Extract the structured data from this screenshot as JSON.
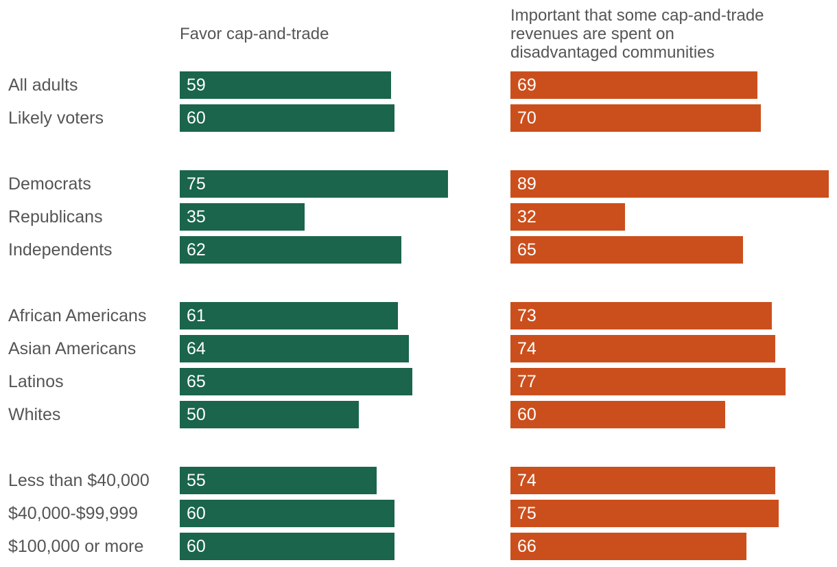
{
  "chart_data": {
    "type": "bar",
    "orientation": "horizontal",
    "categories": [
      "All adults",
      "Likely voters",
      "Democrats",
      "Republicans",
      "Independents",
      "African Americans",
      "Asian Americans",
      "Latinos",
      "Whites",
      "Less than $40,000",
      "$40,000-$99,999",
      "$100,000 or more"
    ],
    "groups": [
      2,
      3,
      4,
      3
    ],
    "series": [
      {
        "name": "Favor cap-and-trade",
        "header_lines": [
          "Favor cap-and-trade"
        ],
        "color": "#1a654b",
        "values": [
          59,
          60,
          75,
          35,
          62,
          61,
          64,
          65,
          50,
          55,
          60,
          60
        ]
      },
      {
        "name": "Important that some cap-and-trade revenues are spent on disadvantaged communities",
        "header_lines": [
          "Important that some cap-and-trade",
          "revenues are spent on",
          "disadvantaged communities"
        ],
        "color": "#cb4f1c",
        "values": [
          69,
          70,
          89,
          32,
          65,
          73,
          74,
          77,
          60,
          74,
          75,
          66
        ]
      }
    ],
    "xlim": [
      0,
      89
    ],
    "title": "",
    "xlabel": "",
    "ylabel": ""
  }
}
